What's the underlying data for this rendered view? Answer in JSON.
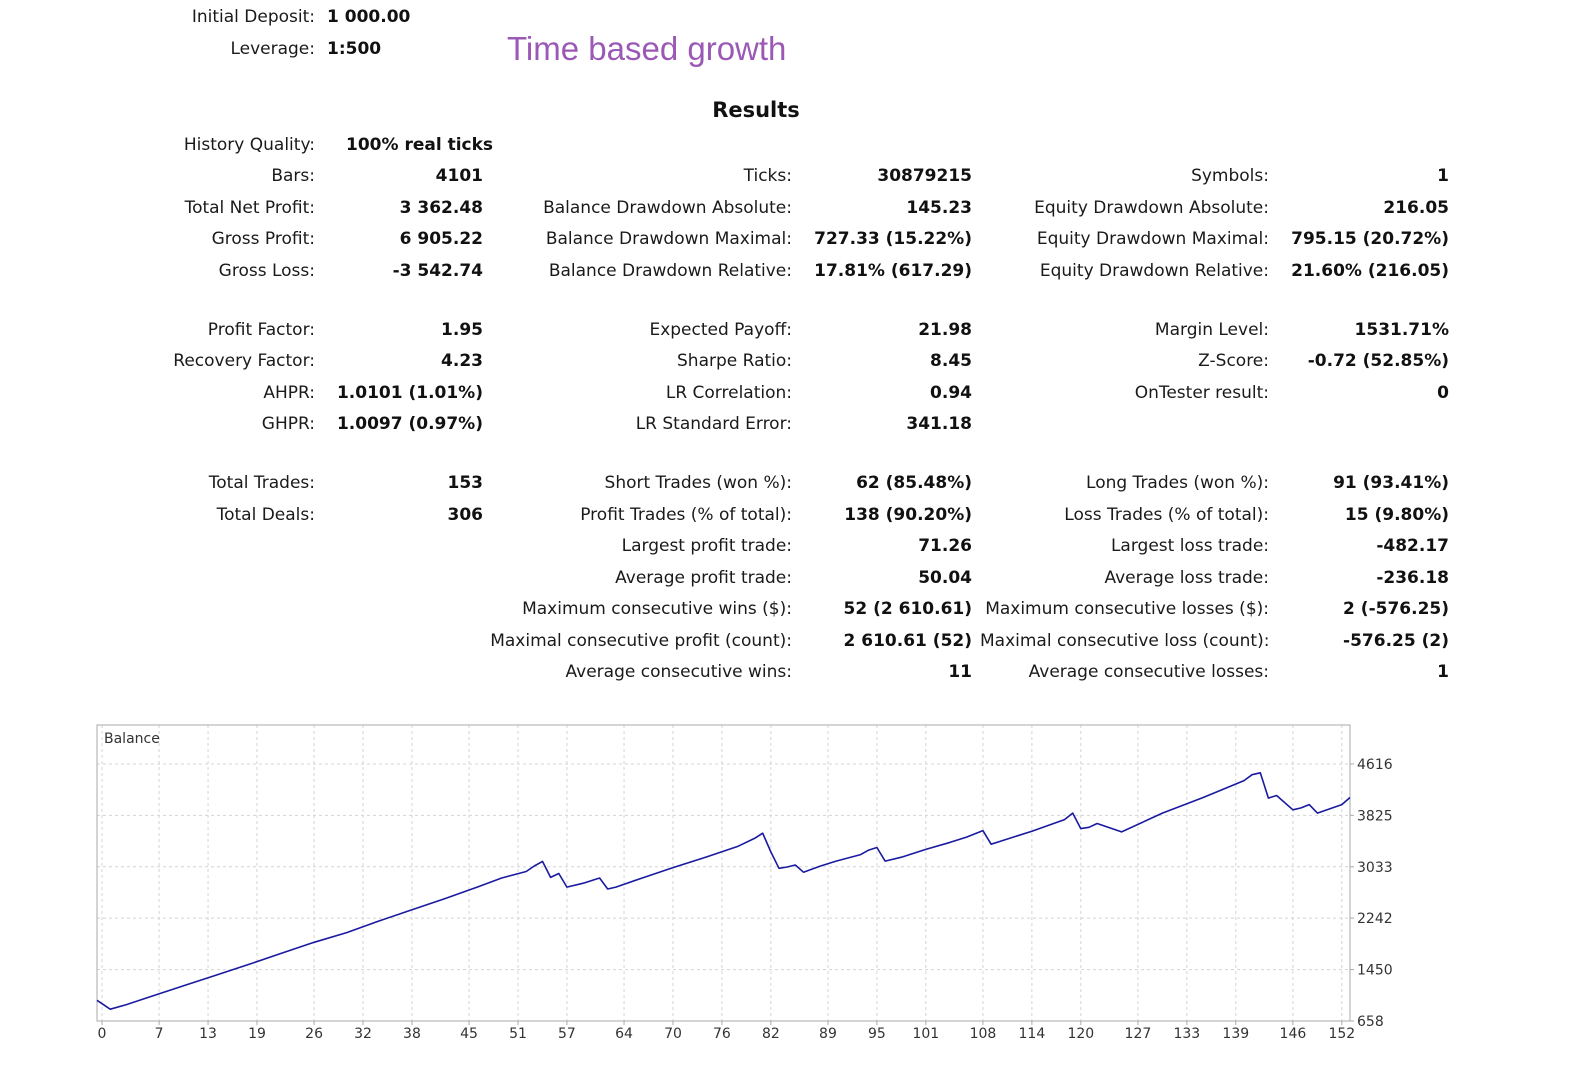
{
  "headline": {
    "text": "Time based growth",
    "color": "#9b59b6"
  },
  "header": {
    "initial_deposit_label": "Initial Deposit:",
    "initial_deposit_value": "1 000.00",
    "leverage_label": "Leverage:",
    "leverage_value": "1:500"
  },
  "results": {
    "title": "Results",
    "history_quality_label": "History Quality:",
    "history_quality_value": "100% real ticks",
    "col1": [
      {
        "label": "Bars:",
        "value": "4101"
      },
      {
        "label": "Total Net Profit:",
        "value": "3 362.48"
      },
      {
        "label": "Gross Profit:",
        "value": "6 905.22"
      },
      {
        "label": "Gross Loss:",
        "value": "-3 542.74"
      },
      {
        "label": "Profit Factor:",
        "value": "1.95"
      },
      {
        "label": "Recovery Factor:",
        "value": "4.23"
      },
      {
        "label": "AHPR:",
        "value": "1.0101 (1.01%)"
      },
      {
        "label": "GHPR:",
        "value": "1.0097 (0.97%)"
      },
      {
        "label": "Total Trades:",
        "value": "153"
      },
      {
        "label": "Total Deals:",
        "value": "306"
      }
    ],
    "col2": [
      {
        "label": "Ticks:",
        "value": "30879215"
      },
      {
        "label": "Balance Drawdown Absolute:",
        "value": "145.23"
      },
      {
        "label": "Balance Drawdown Maximal:",
        "value": "727.33 (15.22%)"
      },
      {
        "label": "Balance Drawdown Relative:",
        "value": "17.81% (617.29)"
      },
      {
        "label": "Expected Payoff:",
        "value": "21.98"
      },
      {
        "label": "Sharpe Ratio:",
        "value": "8.45"
      },
      {
        "label": "LR Correlation:",
        "value": "0.94"
      },
      {
        "label": "LR Standard Error:",
        "value": "341.18"
      },
      {
        "label": "Short Trades (won %):",
        "value": "62 (85.48%)"
      },
      {
        "label": "Profit Trades (% of total):",
        "value": "138 (90.20%)"
      },
      {
        "label": "Largest profit trade:",
        "value": "71.26"
      },
      {
        "label": "Average profit trade:",
        "value": "50.04"
      },
      {
        "label": "Maximum consecutive wins ($):",
        "value": "52 (2 610.61)"
      },
      {
        "label": "Maximal consecutive profit (count):",
        "value": "2 610.61 (52)"
      },
      {
        "label": "Average consecutive wins:",
        "value": "11"
      }
    ],
    "col3": [
      {
        "label": "Symbols:",
        "value": "1"
      },
      {
        "label": "Equity Drawdown Absolute:",
        "value": "216.05"
      },
      {
        "label": "Equity Drawdown Maximal:",
        "value": "795.15 (20.72%)"
      },
      {
        "label": "Equity Drawdown Relative:",
        "value": "21.60% (216.05)"
      },
      {
        "label": "Margin Level:",
        "value": "1531.71%"
      },
      {
        "label": "Z-Score:",
        "value": "-0.72 (52.85%)"
      },
      {
        "label": "OnTester result:",
        "value": "0"
      },
      {
        "label": "Long Trades (won %):",
        "value": "91 (93.41%)"
      },
      {
        "label": "Loss Trades (% of total):",
        "value": "15 (9.80%)"
      },
      {
        "label": "Largest loss trade:",
        "value": "-482.17"
      },
      {
        "label": "Average loss trade:",
        "value": "-236.18"
      },
      {
        "label": "Maximum consecutive losses ($):",
        "value": "2 (-576.25)"
      },
      {
        "label": "Maximal consecutive loss (count):",
        "value": "-576.25 (2)"
      },
      {
        "label": "Average consecutive losses:",
        "value": "1"
      }
    ]
  },
  "chart_data": {
    "type": "line",
    "title": "Balance",
    "series": [
      {
        "name": "Balance",
        "color": "#1a1aa0",
        "x": [
          0,
          1,
          3,
          6,
          10,
          14,
          18,
          22,
          26,
          30,
          34,
          38,
          42,
          46,
          49,
          52,
          53,
          54,
          55,
          56,
          57,
          59,
          61,
          62,
          63,
          66,
          70,
          74,
          78,
          80,
          81,
          82,
          83,
          84,
          85,
          86,
          88,
          90,
          93,
          94,
          95,
          96,
          98,
          101,
          104,
          106,
          108,
          109,
          110,
          114,
          118,
          119,
          120,
          121,
          122,
          125,
          130,
          135,
          140,
          141,
          142,
          143,
          144,
          146,
          147,
          148,
          149,
          152,
          153
        ],
        "y": [
          977,
          840,
          910,
          1035,
          1200,
          1365,
          1530,
          1700,
          1870,
          2020,
          2200,
          2370,
          2540,
          2720,
          2860,
          2960,
          3045,
          3115,
          2870,
          2930,
          2720,
          2780,
          2860,
          2690,
          2720,
          2850,
          3020,
          3180,
          3350,
          3470,
          3550,
          3260,
          3010,
          3030,
          3060,
          2950,
          3040,
          3120,
          3220,
          3290,
          3330,
          3120,
          3180,
          3300,
          3410,
          3490,
          3590,
          3380,
          3420,
          3580,
          3760,
          3860,
          3620,
          3640,
          3700,
          3570,
          3860,
          4100,
          4360,
          4450,
          4480,
          4090,
          4130,
          3910,
          3940,
          3990,
          3860,
          3990,
          4100
        ]
      }
    ],
    "x_ticks": [
      0,
      7,
      13,
      19,
      26,
      32,
      38,
      45,
      51,
      57,
      64,
      70,
      76,
      82,
      89,
      95,
      101,
      108,
      114,
      120,
      127,
      133,
      139,
      146,
      152
    ],
    "y_ticks": [
      658,
      1450,
      2242,
      3033,
      3825,
      4616
    ],
    "xlim": [
      0,
      153
    ],
    "ylim": [
      658,
      5216
    ],
    "grid": true,
    "xlabel": "",
    "ylabel": "",
    "legend": "top-left",
    "grid_color": "#d4d4d4",
    "frame_color": "#aaaaaa"
  }
}
